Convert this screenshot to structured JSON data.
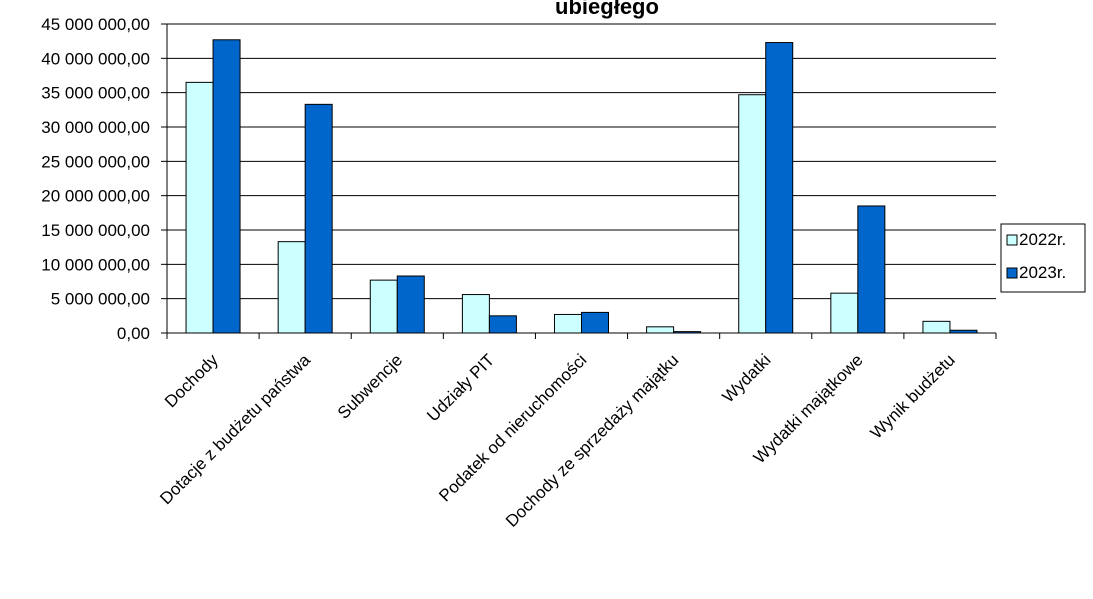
{
  "chart_data": {
    "type": "bar",
    "title": "ubiegłego",
    "categories": [
      "Dochody",
      "Dotacje z budżetu państwa",
      "Subwencje",
      "Udziały PIT",
      "Podatek od nieruchomości",
      "Dochody ze sprzedaży majątku",
      "Wydatki",
      "Wydatki majątkowe",
      "Wynik budżetu"
    ],
    "series": [
      {
        "name": "2022r.",
        "color": "#CCFFFF",
        "values": [
          36500000,
          13300000,
          7700000,
          5600000,
          2700000,
          900000,
          34700000,
          5800000,
          1700000
        ]
      },
      {
        "name": "2023r.",
        "color": "#0066CC",
        "values": [
          42700000,
          33300000,
          8300000,
          2500000,
          3000000,
          200000,
          42300000,
          18500000,
          400000
        ]
      }
    ],
    "ylim": [
      0,
      45000000
    ],
    "yticks": [
      {
        "value": 0,
        "label": "0,00"
      },
      {
        "value": 5000000,
        "label": "5 000 000,00"
      },
      {
        "value": 10000000,
        "label": "10 000 000,00"
      },
      {
        "value": 15000000,
        "label": "15 000 000,00"
      },
      {
        "value": 20000000,
        "label": "20 000 000,00"
      },
      {
        "value": 25000000,
        "label": "25 000 000,00"
      },
      {
        "value": 30000000,
        "label": "30 000 000,00"
      },
      {
        "value": 35000000,
        "label": "35 000 000,00"
      },
      {
        "value": 40000000,
        "label": "40 000 000,00"
      },
      {
        "value": 45000000,
        "label": "45 000 000,00"
      }
    ],
    "grid": true,
    "legend_position": "right"
  }
}
